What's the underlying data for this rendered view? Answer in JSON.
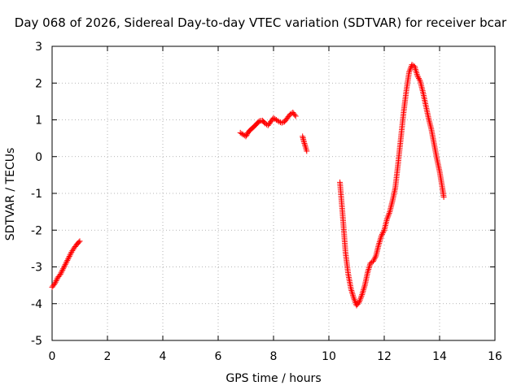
{
  "chart_data": {
    "type": "scatter",
    "title": "Day 068 of 2026, Sidereal Day-to-day VTEC variation (SDTVAR) for receiver bcar",
    "xlabel": "GPS time / hours",
    "ylabel": "SDTVAR / TECUs",
    "xlim": [
      0,
      16
    ],
    "ylim": [
      -5,
      3
    ],
    "xticks": [
      "0",
      "2",
      "4",
      "6",
      "8",
      "10",
      "12",
      "14",
      "16"
    ],
    "yticks": [
      "-5",
      "-4",
      "-3",
      "-2",
      "-1",
      "0",
      "1",
      "2",
      "3"
    ],
    "grid": true,
    "marker": "+",
    "color": "#ff0000",
    "segments": [
      {
        "x": [
          0.0,
          0.1,
          0.2,
          0.3,
          0.4,
          0.5,
          0.6,
          0.7,
          0.8,
          0.9,
          1.0
        ],
        "y": [
          -3.55,
          -3.45,
          -3.3,
          -3.2,
          -3.05,
          -2.9,
          -2.75,
          -2.6,
          -2.48,
          -2.38,
          -2.3
        ]
      },
      {
        "x": [
          6.8,
          6.9,
          7.0,
          7.1,
          7.2,
          7.3,
          7.4,
          7.5,
          7.6,
          7.7,
          7.8,
          7.9,
          8.0,
          8.1,
          8.2,
          8.3,
          8.4,
          8.5,
          8.6,
          8.7,
          8.8
        ],
        "y": [
          0.65,
          0.6,
          0.55,
          0.68,
          0.75,
          0.82,
          0.9,
          0.97,
          0.98,
          0.9,
          0.85,
          0.95,
          1.05,
          1.0,
          0.95,
          0.92,
          0.95,
          1.05,
          1.15,
          1.2,
          1.1
        ]
      },
      {
        "x": [
          9.05,
          9.1,
          9.15,
          9.2
        ],
        "y": [
          0.55,
          0.4,
          0.28,
          0.15
        ]
      },
      {
        "x": [
          10.4,
          10.5,
          10.6,
          10.7,
          10.8,
          10.9,
          11.0,
          11.1,
          11.2,
          11.3,
          11.4,
          11.5,
          11.6,
          11.7,
          11.8,
          11.9,
          12.0,
          12.1,
          12.2,
          12.3,
          12.4,
          12.5,
          12.6,
          12.7,
          12.8,
          12.9,
          13.0,
          13.1,
          13.2,
          13.3,
          13.4,
          13.5,
          13.6,
          13.7,
          13.8,
          13.9,
          14.0,
          14.1,
          14.15
        ],
        "y": [
          -0.7,
          -1.6,
          -2.6,
          -3.2,
          -3.6,
          -3.85,
          -4.05,
          -3.95,
          -3.75,
          -3.5,
          -3.15,
          -2.9,
          -2.85,
          -2.7,
          -2.4,
          -2.15,
          -2.0,
          -1.7,
          -1.5,
          -1.2,
          -0.85,
          -0.2,
          0.5,
          1.2,
          1.8,
          2.3,
          2.5,
          2.45,
          2.2,
          2.05,
          1.75,
          1.4,
          1.05,
          0.75,
          0.35,
          -0.05,
          -0.4,
          -0.85,
          -1.1
        ]
      }
    ]
  }
}
